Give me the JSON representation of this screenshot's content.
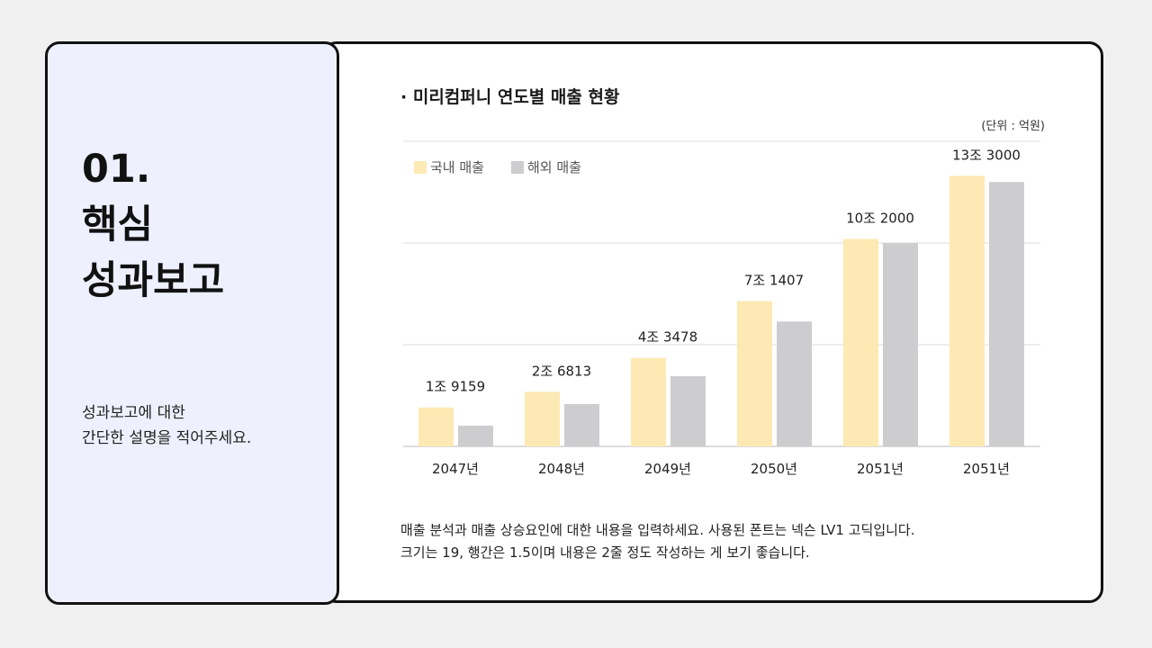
{
  "left_panel": {
    "title_lines": [
      "01.",
      "핵심",
      "성과보고"
    ],
    "desc_lines": [
      "성과보고에 대한",
      "간단한 설명을 적어주세요."
    ]
  },
  "chart_data": {
    "type": "bar",
    "title": "· 미리컴퍼니 연도별 매출 현황",
    "unit_label": "(단위 : 억원)",
    "categories": [
      "2047년",
      "2048년",
      "2049년",
      "2050년",
      "2051년",
      "2051년"
    ],
    "series": [
      {
        "name": "국내 매출",
        "color": "#fde9b3",
        "values": [
          19159,
          26813,
          43478,
          71407,
          102000,
          133000
        ],
        "labels": [
          "1조 9159",
          "2조 6813",
          "4조 3478",
          "7조 1407",
          "10조 2000",
          "13조 3000"
        ]
      },
      {
        "name": "해외 매출",
        "color": "#cdcdcf",
        "values": [
          10200,
          20800,
          34500,
          61400,
          99900,
          130000
        ]
      }
    ],
    "ylim": [
      0,
      150000
    ],
    "grid": true,
    "legend": "top-left"
  },
  "footer": {
    "lines": [
      "매출 분석과 매출 상승요인에 대한 내용을 입력하세요. 사용된 폰트는 넥슨 LV1 고딕입니다.",
      "크기는 19, 행간은 1.5이며 내용은 2줄 정도 작성하는 게 보기 좋습니다."
    ]
  }
}
